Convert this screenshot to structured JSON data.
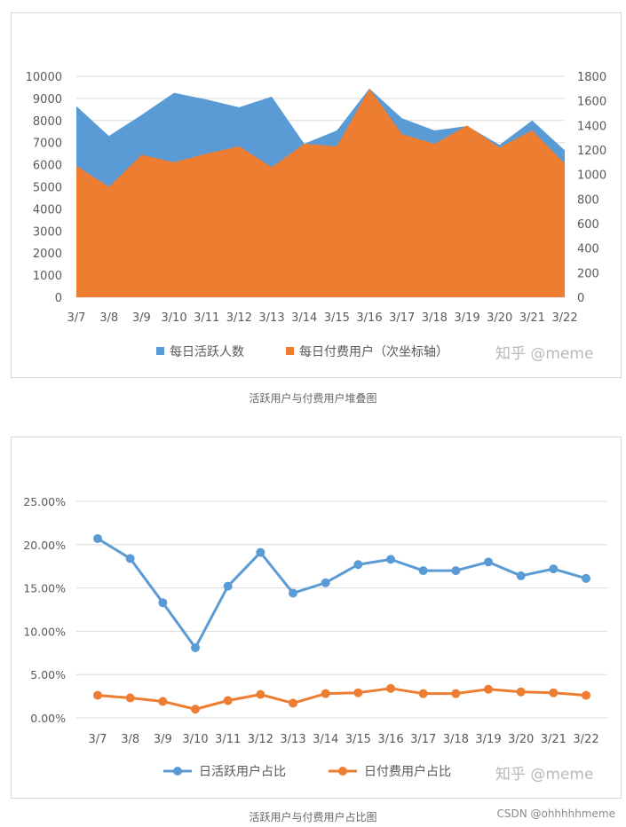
{
  "chart_data": [
    {
      "type": "area",
      "stacking": "none",
      "categories": [
        "3/7",
        "3/8",
        "3/9",
        "3/10",
        "3/11",
        "3/12",
        "3/13",
        "3/14",
        "3/15",
        "3/16",
        "3/17",
        "3/18",
        "3/19",
        "3/20",
        "3/21",
        "3/22"
      ],
      "series": [
        {
          "name": "每日活跃人数",
          "axis": "primary",
          "color": "#5b9bd5",
          "values": [
            8650,
            7300,
            8250,
            9250,
            8950,
            8600,
            9080,
            6950,
            7550,
            9450,
            8100,
            7550,
            7750,
            6900,
            8000,
            6650
          ]
        },
        {
          "name": "每日付费用户（次坐标轴）",
          "axis": "secondary",
          "color": "#ed7d31",
          "values": [
            1070,
            900,
            1160,
            1100,
            1170,
            1230,
            1060,
            1250,
            1230,
            1700,
            1330,
            1250,
            1400,
            1220,
            1360,
            1090
          ]
        }
      ],
      "y_ticks": [
        "0",
        "1000",
        "2000",
        "3000",
        "4000",
        "5000",
        "6000",
        "7000",
        "8000",
        "9000",
        "10000"
      ],
      "ylim": [
        0,
        10000
      ],
      "y2_ticks": [
        "0",
        "200",
        "400",
        "600",
        "800",
        "1000",
        "1200",
        "1400",
        "1600",
        "1800"
      ],
      "y2lim": [
        0,
        1800
      ],
      "grid": true,
      "legend_position": "bottom"
    },
    {
      "type": "line",
      "categories": [
        "3/7",
        "3/8",
        "3/9",
        "3/10",
        "3/11",
        "3/12",
        "3/13",
        "3/14",
        "3/15",
        "3/16",
        "3/17",
        "3/18",
        "3/19",
        "3/20",
        "3/21",
        "3/22"
      ],
      "series": [
        {
          "name": "日活跃用户占比",
          "color": "#5b9bd5",
          "values": [
            20.7,
            18.4,
            13.3,
            8.1,
            15.2,
            19.1,
            14.4,
            15.6,
            17.7,
            18.3,
            17.0,
            17.0,
            18.0,
            16.4,
            17.2,
            16.1
          ]
        },
        {
          "name": "日付费用户占比",
          "color": "#ed7d31",
          "values": [
            2.6,
            2.3,
            1.9,
            1.0,
            2.0,
            2.7,
            1.7,
            2.8,
            2.9,
            3.4,
            2.8,
            2.8,
            3.3,
            3.0,
            2.9,
            2.6
          ]
        }
      ],
      "y_ticks": [
        "0.00%",
        "5.00%",
        "10.00%",
        "15.00%",
        "20.00%",
        "25.00%"
      ],
      "ylim": [
        0,
        25
      ],
      "grid": true,
      "legend_position": "bottom"
    }
  ],
  "captions": {
    "chart1": "活跃用户与付费用户堆叠图",
    "chart2": "活跃用户与付费用户占比图"
  },
  "watermark": "知乎 @meme",
  "site_mark": "CSDN @ohhhhhmeme"
}
